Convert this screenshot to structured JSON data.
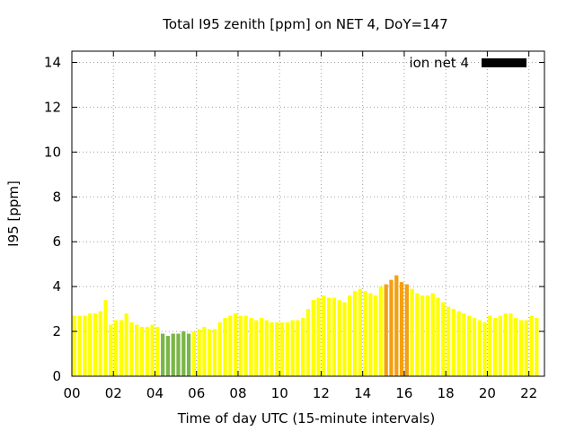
{
  "chart_data": {
    "type": "bar",
    "title": "Total I95 zenith [ppm] on NET 4, DoY=147",
    "xlabel": "Time of day UTC (15-minute intervals)",
    "ylabel": "I95 [ppm]",
    "xlim": [
      0,
      22.75
    ],
    "ylim": [
      0,
      14.5
    ],
    "x_ticks": [
      "00",
      "02",
      "04",
      "06",
      "08",
      "10",
      "12",
      "14",
      "16",
      "18",
      "20",
      "22"
    ],
    "y_ticks": [
      "0",
      "2",
      "4",
      "6",
      "8",
      "10",
      "12",
      "14"
    ],
    "grid": true,
    "legend": {
      "position": "top-right"
    },
    "series": [
      {
        "name": "ion net 4",
        "legend_color": "#000000",
        "x_start_hour": 0,
        "x_step_hours": 0.25,
        "values": [
          2.7,
          2.7,
          2.7,
          2.8,
          2.8,
          2.9,
          3.4,
          2.3,
          2.5,
          2.5,
          2.8,
          2.4,
          2.3,
          2.2,
          2.2,
          2.3,
          2.2,
          1.9,
          1.8,
          1.9,
          1.9,
          2.0,
          1.9,
          2.0,
          2.1,
          2.2,
          2.1,
          2.1,
          2.4,
          2.6,
          2.7,
          2.8,
          2.7,
          2.7,
          2.6,
          2.5,
          2.6,
          2.5,
          2.4,
          2.4,
          2.4,
          2.4,
          2.5,
          2.5,
          2.6,
          3.0,
          3.4,
          3.5,
          3.6,
          3.5,
          3.5,
          3.4,
          3.3,
          3.6,
          3.8,
          3.9,
          3.8,
          3.7,
          3.6,
          4.0,
          4.1,
          4.3,
          4.5,
          4.2,
          4.1,
          3.9,
          3.7,
          3.6,
          3.6,
          3.7,
          3.5,
          3.3,
          3.1,
          3.0,
          2.9,
          2.8,
          2.7,
          2.6,
          2.5,
          2.4,
          2.7,
          2.6,
          2.7,
          2.8,
          2.8,
          2.6,
          2.5,
          2.5,
          2.7,
          2.6
        ],
        "bar_colors": {
          "default": "#ffff00",
          "low": "#7ab648",
          "high": "#f5a010"
        },
        "low_index_range": [
          17,
          22
        ],
        "high_index_range": [
          60,
          64
        ]
      }
    ]
  }
}
